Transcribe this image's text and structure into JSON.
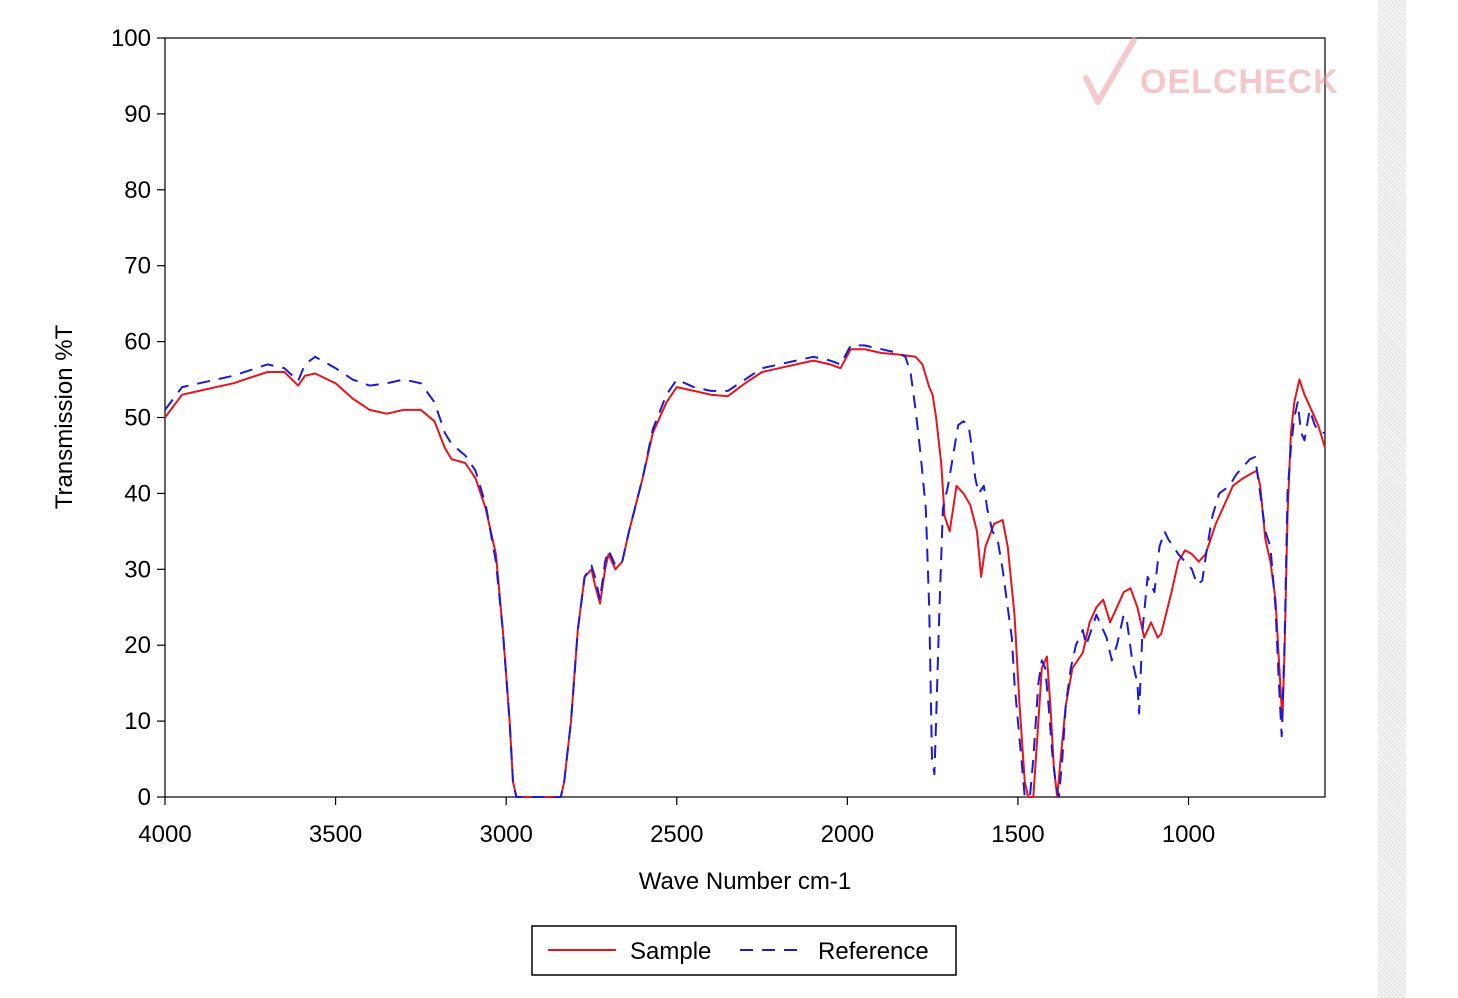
{
  "chart_data": {
    "type": "line",
    "title": "",
    "xlabel": "Wave Number cm-1",
    "ylabel": "Transmission %T",
    "xlim": [
      4000,
      600
    ],
    "ylim": [
      0,
      100
    ],
    "x_reversed": true,
    "xticks": [
      4000,
      3500,
      3000,
      2500,
      2000,
      1500,
      1000
    ],
    "yticks": [
      0,
      10,
      20,
      30,
      40,
      50,
      60,
      70,
      80,
      90,
      100
    ],
    "grid": false,
    "legend_position": "bottom-center",
    "watermark": "OELCHECK",
    "colors": {
      "sample": "#e8141c",
      "reference": "#1a1adc",
      "watermark": "#f0b8bc"
    },
    "series": [
      {
        "name": "Sample",
        "style": "solid",
        "color": "#e8141c",
        "points": [
          [
            4000,
            50
          ],
          [
            3950,
            53
          ],
          [
            3900,
            53.5
          ],
          [
            3800,
            54.5
          ],
          [
            3700,
            56
          ],
          [
            3650,
            56
          ],
          [
            3610,
            54.2
          ],
          [
            3590,
            55.5
          ],
          [
            3560,
            55.8
          ],
          [
            3500,
            54.5
          ],
          [
            3450,
            52.5
          ],
          [
            3400,
            51
          ],
          [
            3350,
            50.5
          ],
          [
            3300,
            51
          ],
          [
            3250,
            51
          ],
          [
            3210,
            49.5
          ],
          [
            3180,
            46
          ],
          [
            3160,
            44.5
          ],
          [
            3120,
            44
          ],
          [
            3090,
            42
          ],
          [
            3060,
            38
          ],
          [
            3030,
            32
          ],
          [
            3010,
            22
          ],
          [
            2990,
            10
          ],
          [
            2980,
            2
          ],
          [
            2970,
            0
          ],
          [
            2840,
            0
          ],
          [
            2830,
            2
          ],
          [
            2810,
            10
          ],
          [
            2790,
            22
          ],
          [
            2770,
            29
          ],
          [
            2750,
            30
          ],
          [
            2740,
            28
          ],
          [
            2725,
            25.5
          ],
          [
            2710,
            30
          ],
          [
            2700,
            32
          ],
          [
            2680,
            30
          ],
          [
            2660,
            31
          ],
          [
            2640,
            35
          ],
          [
            2600,
            42
          ],
          [
            2570,
            48
          ],
          [
            2530,
            52
          ],
          [
            2500,
            54
          ],
          [
            2450,
            53.5
          ],
          [
            2400,
            53
          ],
          [
            2350,
            52.8
          ],
          [
            2300,
            54.5
          ],
          [
            2250,
            56
          ],
          [
            2200,
            56.5
          ],
          [
            2150,
            57
          ],
          [
            2100,
            57.5
          ],
          [
            2050,
            57
          ],
          [
            2020,
            56.5
          ],
          [
            1990,
            59
          ],
          [
            1950,
            59
          ],
          [
            1900,
            58.5
          ],
          [
            1850,
            58.3
          ],
          [
            1800,
            58
          ],
          [
            1780,
            57
          ],
          [
            1760,
            54
          ],
          [
            1750,
            53
          ],
          [
            1740,
            50
          ],
          [
            1725,
            44
          ],
          [
            1715,
            37
          ],
          [
            1700,
            35
          ],
          [
            1690,
            38
          ],
          [
            1680,
            41
          ],
          [
            1660,
            40
          ],
          [
            1640,
            38.5
          ],
          [
            1620,
            35
          ],
          [
            1608,
            29
          ],
          [
            1595,
            33
          ],
          [
            1570,
            36
          ],
          [
            1545,
            36.5
          ],
          [
            1530,
            33
          ],
          [
            1510,
            24
          ],
          [
            1495,
            12
          ],
          [
            1480,
            2
          ],
          [
            1470,
            0
          ],
          [
            1455,
            0
          ],
          [
            1440,
            10
          ],
          [
            1430,
            17
          ],
          [
            1415,
            18.5
          ],
          [
            1405,
            12
          ],
          [
            1395,
            4
          ],
          [
            1385,
            0
          ],
          [
            1375,
            5
          ],
          [
            1360,
            12
          ],
          [
            1340,
            17
          ],
          [
            1310,
            19
          ],
          [
            1290,
            23
          ],
          [
            1270,
            25
          ],
          [
            1250,
            26
          ],
          [
            1230,
            23
          ],
          [
            1210,
            25
          ],
          [
            1190,
            27
          ],
          [
            1170,
            27.5
          ],
          [
            1150,
            25
          ],
          [
            1130,
            21
          ],
          [
            1110,
            23
          ],
          [
            1090,
            21
          ],
          [
            1080,
            21.5
          ],
          [
            1050,
            27
          ],
          [
            1030,
            31
          ],
          [
            1010,
            32.5
          ],
          [
            990,
            32
          ],
          [
            970,
            31
          ],
          [
            950,
            32
          ],
          [
            920,
            36
          ],
          [
            890,
            39
          ],
          [
            870,
            41
          ],
          [
            840,
            42
          ],
          [
            820,
            42.5
          ],
          [
            800,
            43
          ],
          [
            790,
            41
          ],
          [
            775,
            34
          ],
          [
            760,
            31
          ],
          [
            745,
            26
          ],
          [
            735,
            18
          ],
          [
            725,
            10
          ],
          [
            718,
            20
          ],
          [
            710,
            37
          ],
          [
            700,
            48
          ],
          [
            690,
            52
          ],
          [
            675,
            55
          ],
          [
            660,
            53
          ],
          [
            640,
            51
          ],
          [
            620,
            49
          ],
          [
            600,
            46
          ]
        ]
      },
      {
        "name": "Reference",
        "style": "dashed",
        "color": "#1a1adc",
        "points": [
          [
            4000,
            51
          ],
          [
            3950,
            54
          ],
          [
            3900,
            54.5
          ],
          [
            3800,
            55.5
          ],
          [
            3700,
            57
          ],
          [
            3650,
            56.5
          ],
          [
            3610,
            54.8
          ],
          [
            3590,
            57
          ],
          [
            3560,
            58
          ],
          [
            3500,
            56.5
          ],
          [
            3450,
            55
          ],
          [
            3400,
            54.2
          ],
          [
            3350,
            54.5
          ],
          [
            3300,
            55
          ],
          [
            3250,
            54.5
          ],
          [
            3210,
            52
          ],
          [
            3180,
            48
          ],
          [
            3160,
            46.5
          ],
          [
            3120,
            45
          ],
          [
            3090,
            43
          ],
          [
            3060,
            38.5
          ],
          [
            3030,
            31
          ],
          [
            3010,
            22
          ],
          [
            2990,
            10
          ],
          [
            2980,
            2
          ],
          [
            2970,
            0
          ],
          [
            2840,
            0
          ],
          [
            2830,
            2
          ],
          [
            2810,
            10
          ],
          [
            2790,
            22
          ],
          [
            2770,
            29
          ],
          [
            2750,
            30.5
          ],
          [
            2740,
            29
          ],
          [
            2725,
            26
          ],
          [
            2710,
            31
          ],
          [
            2700,
            32.5
          ],
          [
            2680,
            30.5
          ],
          [
            2660,
            31
          ],
          [
            2640,
            35
          ],
          [
            2600,
            42
          ],
          [
            2570,
            48.5
          ],
          [
            2530,
            53
          ],
          [
            2500,
            55
          ],
          [
            2450,
            54
          ],
          [
            2400,
            53.5
          ],
          [
            2350,
            53.5
          ],
          [
            2300,
            55
          ],
          [
            2250,
            56.5
          ],
          [
            2200,
            57
          ],
          [
            2150,
            57.5
          ],
          [
            2100,
            58
          ],
          [
            2050,
            57.5
          ],
          [
            2020,
            57
          ],
          [
            1990,
            59.5
          ],
          [
            1950,
            59.5
          ],
          [
            1900,
            59
          ],
          [
            1850,
            58.5
          ],
          [
            1830,
            58
          ],
          [
            1815,
            56
          ],
          [
            1800,
            51
          ],
          [
            1785,
            45
          ],
          [
            1770,
            38
          ],
          [
            1760,
            25
          ],
          [
            1752,
            5
          ],
          [
            1745,
            3
          ],
          [
            1740,
            10
          ],
          [
            1730,
            25
          ],
          [
            1720,
            38
          ],
          [
            1705,
            41
          ],
          [
            1690,
            45
          ],
          [
            1675,
            49
          ],
          [
            1660,
            49.5
          ],
          [
            1645,
            49
          ],
          [
            1635,
            46
          ],
          [
            1625,
            42
          ],
          [
            1615,
            40
          ],
          [
            1600,
            41
          ],
          [
            1590,
            38
          ],
          [
            1575,
            35
          ],
          [
            1560,
            34
          ],
          [
            1545,
            30
          ],
          [
            1530,
            25
          ],
          [
            1518,
            21
          ],
          [
            1510,
            15
          ],
          [
            1500,
            10
          ],
          [
            1490,
            5
          ],
          [
            1480,
            0
          ],
          [
            1465,
            0
          ],
          [
            1455,
            5
          ],
          [
            1440,
            15
          ],
          [
            1430,
            18
          ],
          [
            1420,
            17
          ],
          [
            1410,
            12
          ],
          [
            1400,
            6
          ],
          [
            1390,
            2
          ],
          [
            1380,
            0
          ],
          [
            1370,
            5
          ],
          [
            1360,
            12
          ],
          [
            1345,
            17
          ],
          [
            1330,
            20
          ],
          [
            1310,
            22
          ],
          [
            1300,
            20
          ],
          [
            1285,
            22
          ],
          [
            1270,
            24
          ],
          [
            1260,
            23
          ],
          [
            1240,
            21
          ],
          [
            1225,
            18
          ],
          [
            1210,
            20
          ],
          [
            1190,
            24
          ],
          [
            1180,
            23
          ],
          [
            1165,
            18
          ],
          [
            1150,
            15
          ],
          [
            1145,
            11
          ],
          [
            1135,
            22
          ],
          [
            1120,
            29
          ],
          [
            1100,
            27
          ],
          [
            1085,
            33
          ],
          [
            1070,
            35
          ],
          [
            1060,
            34
          ],
          [
            1045,
            33
          ],
          [
            1030,
            32
          ],
          [
            1010,
            31
          ],
          [
            990,
            30
          ],
          [
            975,
            28
          ],
          [
            960,
            28.5
          ],
          [
            945,
            33
          ],
          [
            930,
            37
          ],
          [
            910,
            40
          ],
          [
            880,
            41
          ],
          [
            860,
            42.5
          ],
          [
            840,
            43.5
          ],
          [
            820,
            44.5
          ],
          [
            805,
            44.8
          ],
          [
            790,
            40
          ],
          [
            775,
            35
          ],
          [
            760,
            33
          ],
          [
            745,
            25
          ],
          [
            735,
            15
          ],
          [
            727,
            8
          ],
          [
            718,
            21
          ],
          [
            710,
            40
          ],
          [
            700,
            46
          ],
          [
            690,
            50
          ],
          [
            680,
            52
          ],
          [
            670,
            48
          ],
          [
            660,
            47
          ],
          [
            645,
            51
          ],
          [
            630,
            49
          ],
          [
            615,
            48
          ],
          [
            600,
            48
          ]
        ]
      }
    ]
  }
}
